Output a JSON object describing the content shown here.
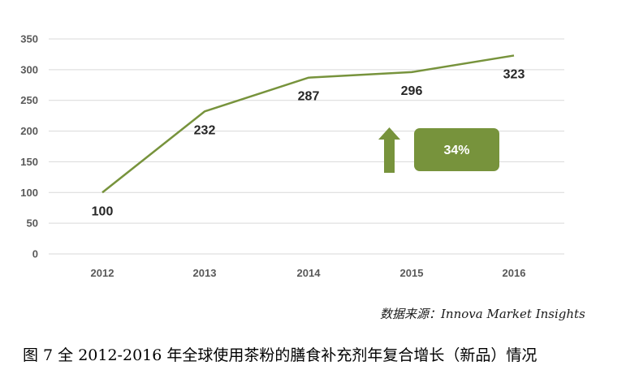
{
  "chart_data": {
    "type": "line",
    "x": [
      "2012",
      "2013",
      "2014",
      "2015",
      "2016"
    ],
    "series": [
      {
        "values": [
          100,
          232,
          287,
          296,
          323
        ],
        "color": "#77933c"
      }
    ],
    "data_labels": [
      "100",
      "232",
      "287",
      "296",
      "323"
    ],
    "y_ticks": [
      0,
      50,
      100,
      150,
      200,
      250,
      300,
      350
    ],
    "ylim": [
      0,
      350
    ],
    "grid": true,
    "annotation": {
      "text": "34%",
      "color": "#77933c",
      "arrow": "up-arrow-icon"
    }
  },
  "source": "数据来源：Innova Market Insights",
  "caption": "图 7 全 2012-2016 年全球使用茶粉的膳食补充剂年复合增长（新品）情况"
}
